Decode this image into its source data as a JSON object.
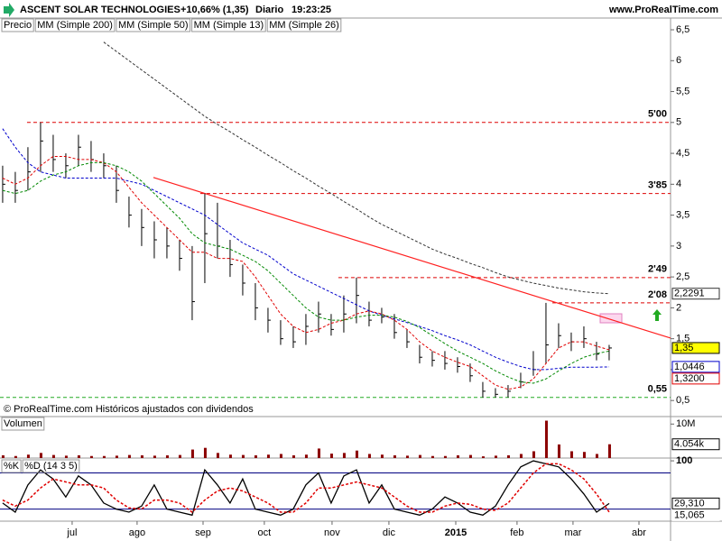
{
  "header": {
    "name": "ASCENT SOLAR TECHNOLOGIES",
    "change": "+10,66% (1,35)",
    "period": "Diario",
    "time": "19:23:25",
    "site": "www.ProRealTime.com"
  },
  "chart_data": [
    {
      "type": "ohlc",
      "note": "© ProRealTime.com  Históricos ajustados con dividendos",
      "x": [
        0,
        1,
        2,
        3,
        4,
        5,
        6,
        7,
        8,
        9,
        10,
        11,
        12,
        13,
        14,
        15,
        16,
        17,
        18,
        19,
        20,
        21,
        22,
        23,
        24,
        25,
        26,
        27,
        28,
        29,
        30,
        31,
        32,
        33,
        34,
        35,
        36,
        37,
        38,
        39,
        40,
        41,
        42,
        43,
        44,
        45,
        46,
        47,
        48
      ],
      "xlim": [
        -0.21,
        52.86
      ],
      "xticks": [
        {
          "value": 5.5,
          "label": "jul"
        },
        {
          "value": 10.64,
          "label": "ago"
        },
        {
          "value": 15.86,
          "label": "sep"
        },
        {
          "value": 20.71,
          "label": "oct"
        },
        {
          "value": 26.07,
          "label": "nov"
        },
        {
          "value": 30.57,
          "label": "dic"
        },
        {
          "value": 35.86,
          "label": "2015"
        },
        {
          "value": 40.71,
          "label": "feb"
        },
        {
          "value": 45.14,
          "label": "mar"
        },
        {
          "value": 50.36,
          "label": "abr"
        }
      ],
      "ylim": [
        0.24,
        6.69
      ],
      "yticks": [
        {
          "value": 0.5,
          "label": "0,5"
        },
        1,
        {
          "value": 1.5,
          "label": "1,5"
        },
        2,
        {
          "value": 2.5,
          "label": "2,5"
        },
        3,
        {
          "value": 3.5,
          "label": "3,5"
        },
        4,
        {
          "value": 4.5,
          "label": "4,5"
        },
        5,
        {
          "value": 5.5,
          "label": "5,5"
        },
        6,
        {
          "value": 6.5,
          "label": "6,5"
        }
      ],
      "series": [
        {
          "name": "Precio",
          "kind": "ohlc",
          "color": "#000000",
          "last_label": "1,35",
          "values": [
            4.0,
            3.9,
            4.2,
            4.7,
            4.4,
            4.3,
            4.6,
            4.4,
            4.3,
            3.9,
            3.5,
            3.3,
            3.1,
            3.0,
            2.8,
            2.1,
            3.2,
            3.0,
            2.7,
            2.4,
            2.0,
            1.8,
            1.5,
            1.45,
            1.7,
            1.9,
            1.65,
            1.9,
            2.2,
            1.8,
            1.85,
            1.6,
            1.45,
            1.2,
            1.15,
            1.1,
            1.05,
            0.9,
            0.65,
            0.6,
            0.65,
            0.8,
            1.0,
            1.4,
            1.55,
            1.45,
            1.5,
            1.25,
            1.35
          ],
          "high": [
            4.3,
            4.2,
            4.6,
            5.0,
            4.8,
            4.5,
            4.8,
            4.7,
            4.5,
            4.3,
            3.8,
            3.6,
            3.4,
            3.3,
            3.1,
            3.0,
            3.85,
            3.7,
            3.1,
            2.7,
            2.4,
            2.0,
            1.8,
            1.7,
            1.9,
            2.1,
            1.9,
            2.2,
            2.49,
            2.1,
            2.0,
            1.9,
            1.65,
            1.4,
            1.3,
            1.3,
            1.2,
            1.1,
            0.8,
            0.7,
            0.75,
            0.95,
            1.3,
            2.08,
            1.75,
            1.6,
            1.7,
            1.45,
            1.4
          ],
          "low": [
            3.7,
            3.7,
            3.9,
            4.2,
            4.2,
            4.1,
            4.3,
            4.2,
            4.1,
            3.7,
            3.3,
            3.0,
            2.8,
            2.8,
            2.6,
            1.8,
            2.4,
            2.8,
            2.5,
            2.2,
            1.8,
            1.6,
            1.4,
            1.35,
            1.4,
            1.6,
            1.55,
            1.6,
            1.75,
            1.7,
            1.75,
            1.5,
            1.35,
            1.1,
            1.05,
            1.0,
            0.95,
            0.8,
            0.55,
            0.55,
            0.55,
            0.7,
            0.9,
            1.1,
            1.35,
            1.3,
            1.35,
            1.15,
            1.15
          ]
        },
        {
          "name": "MM (Simple 200)",
          "kind": "line",
          "color": "#333333",
          "dash": true,
          "last_label": "2,2291",
          "values": [
            null,
            null,
            null,
            null,
            null,
            null,
            null,
            null,
            6.3,
            6.15,
            6.0,
            5.85,
            5.7,
            5.55,
            5.4,
            5.25,
            5.1,
            4.97,
            4.85,
            4.72,
            4.6,
            4.47,
            4.35,
            4.22,
            4.1,
            3.97,
            3.85,
            3.72,
            3.6,
            3.47,
            3.35,
            3.25,
            3.15,
            3.05,
            2.95,
            2.87,
            2.8,
            2.72,
            2.65,
            2.57,
            2.5,
            2.45,
            2.4,
            2.36,
            2.32,
            2.29,
            2.26,
            2.24,
            2.2291
          ]
        },
        {
          "name": "MM (Simple 50)",
          "kind": "line",
          "color": "#0000cc",
          "dash": true,
          "last_label": "1,0446",
          "values": [
            4.9,
            4.6,
            4.35,
            4.2,
            4.15,
            4.1,
            4.1,
            4.1,
            4.1,
            4.1,
            4.05,
            4.0,
            3.9,
            3.8,
            3.7,
            3.6,
            3.5,
            3.35,
            3.2,
            3.05,
            2.95,
            2.85,
            2.7,
            2.55,
            2.45,
            2.35,
            2.25,
            2.15,
            2.05,
            1.95,
            1.88,
            1.82,
            1.76,
            1.7,
            1.63,
            1.55,
            1.48,
            1.4,
            1.3,
            1.2,
            1.12,
            1.05,
            1.0,
            1.0,
            1.02,
            1.04,
            1.04,
            1.04,
            1.0446
          ]
        },
        {
          "name": "MM (Simple 13)",
          "kind": "line",
          "color": "#e00000",
          "dash": true,
          "last_label": "1,3200",
          "values": [
            4.1,
            4.0,
            4.1,
            4.3,
            4.45,
            4.45,
            4.4,
            4.4,
            4.35,
            4.2,
            3.95,
            3.7,
            3.5,
            3.3,
            3.1,
            2.9,
            2.9,
            2.8,
            2.8,
            2.75,
            2.5,
            2.2,
            1.9,
            1.7,
            1.6,
            1.65,
            1.75,
            1.8,
            1.9,
            1.95,
            1.9,
            1.8,
            1.65,
            1.45,
            1.3,
            1.2,
            1.12,
            1.05,
            0.9,
            0.75,
            0.68,
            0.72,
            0.85,
            1.1,
            1.35,
            1.45,
            1.45,
            1.38,
            1.32
          ]
        },
        {
          "name": "MM (Simple 26)",
          "kind": "line",
          "color": "#008800",
          "dash": true,
          "values": [
            3.9,
            3.85,
            3.9,
            4.05,
            4.15,
            4.2,
            4.3,
            4.35,
            4.35,
            4.3,
            4.2,
            4.05,
            3.85,
            3.65,
            3.45,
            3.2,
            3.05,
            3.0,
            2.95,
            2.85,
            2.75,
            2.6,
            2.4,
            2.2,
            2.0,
            1.85,
            1.8,
            1.8,
            1.85,
            1.88,
            1.88,
            1.85,
            1.78,
            1.68,
            1.55,
            1.42,
            1.3,
            1.2,
            1.1,
            0.98,
            0.88,
            0.8,
            0.78,
            0.85,
            0.98,
            1.1,
            1.2,
            1.26,
            1.3
          ]
        }
      ],
      "levels": [
        {
          "value": 5.0,
          "label": "5'00",
          "color": "#dd0000",
          "x0": 1.93
        },
        {
          "value": 3.85,
          "label": "3'85",
          "color": "#dd0000",
          "x0": 15.64
        },
        {
          "value": 2.49,
          "label": "2'49",
          "color": "#dd0000",
          "x0": 26.57
        },
        {
          "value": 2.08,
          "label": "2'08",
          "color": "#dd0000",
          "x0": 43.5
        },
        {
          "value": 0.55,
          "label": "0,55",
          "color": "#22aa22",
          "x0": -0.21
        }
      ],
      "trendline": {
        "x": [
          11.93,
          52.86
        ],
        "y": [
          4.11,
          1.51
        ],
        "color": "#ff2020"
      }
    },
    {
      "type": "bar",
      "title": "Volumen",
      "color": "#8b0000",
      "ylim": [
        0,
        12.2
      ],
      "yticks": [
        {
          "value": 10,
          "label": "10M"
        }
      ],
      "last_label": "4.054k",
      "values": [
        0.8,
        0.6,
        1.0,
        1.5,
        0.9,
        0.7,
        0.8,
        0.6,
        0.6,
        0.7,
        0.9,
        0.8,
        0.7,
        0.8,
        0.9,
        2.5,
        3.0,
        1.5,
        1.0,
        0.9,
        0.8,
        1.0,
        1.2,
        0.8,
        1.0,
        2.8,
        1.3,
        1.5,
        2.2,
        1.2,
        1.0,
        0.8,
        0.7,
        0.9,
        0.6,
        0.6,
        0.8,
        0.9,
        0.5,
        0.7,
        0.8,
        1.2,
        2.0,
        11.0,
        4.0,
        2.0,
        1.8,
        1.2,
        4.054
      ]
    },
    {
      "type": "line",
      "ylim": [
        0,
        104.6
      ],
      "yticks": [
        100
      ],
      "levels": [
        80,
        20
      ],
      "series": [
        {
          "name": "%K",
          "color": "#000000",
          "last_label": "29,310",
          "values": [
            30,
            15,
            60,
            85,
            70,
            40,
            75,
            60,
            30,
            20,
            15,
            25,
            60,
            20,
            15,
            10,
            85,
            60,
            30,
            70,
            20,
            15,
            10,
            20,
            60,
            80,
            30,
            75,
            85,
            30,
            60,
            20,
            15,
            10,
            20,
            40,
            30,
            15,
            10,
            25,
            60,
            90,
            100,
            95,
            90,
            70,
            45,
            15,
            29.31
          ]
        },
        {
          "name": "%D (14 3 5)",
          "color": "#e00000",
          "dash": true,
          "last_label": "15,065",
          "values": [
            35,
            25,
            35,
            55,
            70,
            65,
            60,
            60,
            55,
            35,
            22,
            20,
            35,
            35,
            30,
            15,
            35,
            50,
            55,
            50,
            40,
            30,
            15,
            15,
            30,
            55,
            55,
            60,
            65,
            60,
            55,
            40,
            25,
            15,
            15,
            25,
            30,
            28,
            20,
            18,
            30,
            55,
            80,
            95,
            95,
            85,
            70,
            45,
            15.065
          ]
        }
      ]
    }
  ]
}
